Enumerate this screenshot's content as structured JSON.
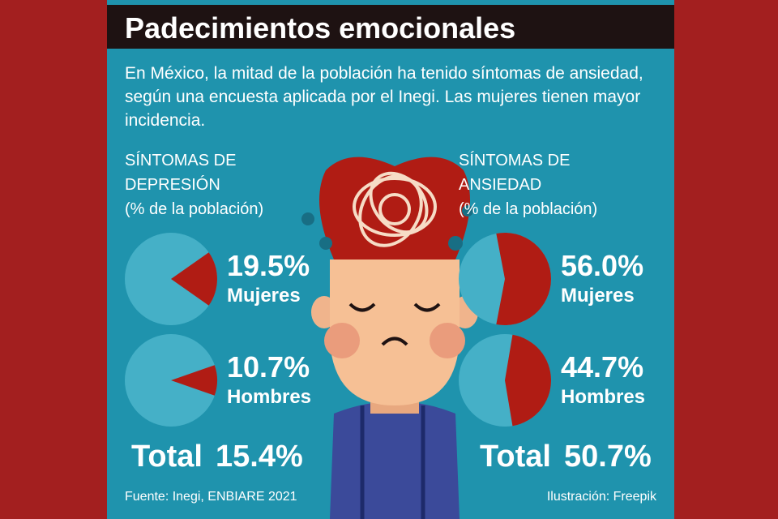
{
  "header": {
    "title": "Padecimientos emocionales",
    "intro": "En México, la mitad de la población ha tenido síntomas de ansiedad, según una encuesta aplicada por el Inegi. Las mujeres tienen mayor incidencia."
  },
  "chart_data": [
    {
      "type": "pie",
      "title": "SÍNTOMAS DE DEPRESIÓN",
      "subtitle": "(% de la población)",
      "categories": [
        "Mujeres"
      ],
      "values": [
        19.5
      ],
      "value_labels": [
        "19.5%"
      ],
      "color": "#b01c14",
      "background_color": "#45b0c7"
    },
    {
      "type": "pie",
      "categories": [
        "Hombres"
      ],
      "values": [
        10.7
      ],
      "value_labels": [
        "10.7%"
      ],
      "color": "#b01c14",
      "background_color": "#45b0c7"
    },
    {
      "type": "pie",
      "title": "SÍNTOMAS DE ANSIEDAD",
      "subtitle": "(% de la población)",
      "categories": [
        "Mujeres"
      ],
      "values": [
        56.0
      ],
      "value_labels": [
        "56.0%"
      ],
      "color": "#b01c14",
      "background_color": "#45b0c7"
    },
    {
      "type": "pie",
      "categories": [
        "Hombres"
      ],
      "values": [
        44.7
      ],
      "value_labels": [
        "44.7%"
      ],
      "color": "#b01c14",
      "background_color": "#45b0c7"
    }
  ],
  "totals": [
    {
      "label": "Total",
      "value": 15.4,
      "value_label": "15.4%"
    },
    {
      "label": "Total",
      "value": 50.7,
      "value_label": "50.7%"
    }
  ],
  "footer": {
    "source": "Fuente: Inegi, ENBIARE 2021",
    "credit": "Ilustración: Freepik"
  }
}
